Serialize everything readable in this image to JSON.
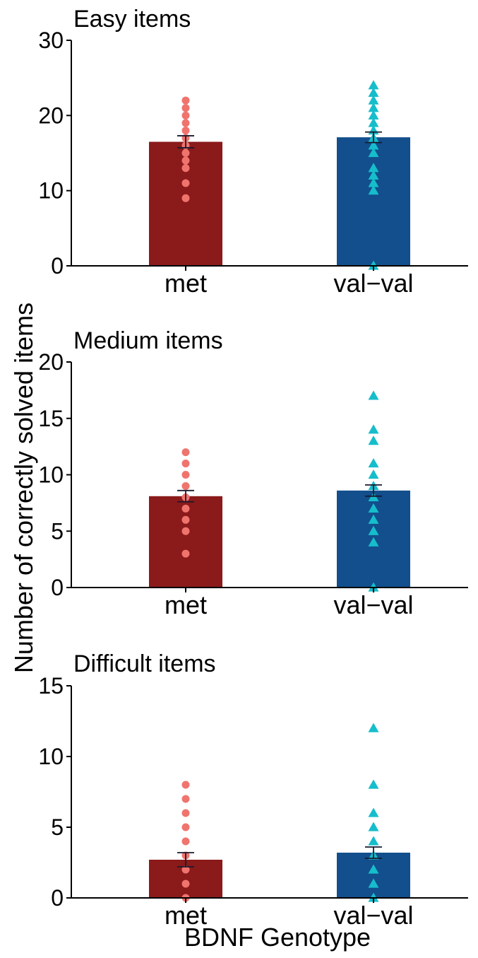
{
  "ylabel": "Number of correctly solved items",
  "xlabel": "BDNF Genotype",
  "colors": {
    "met_bar": "#8B1A1A",
    "valval_bar": "#124F8C",
    "met_point": "#F0746E",
    "valval_point": "#16BDCB",
    "axis": "#000000"
  },
  "chart_data": [
    {
      "type": "bar",
      "title": "Easy items",
      "categories": [
        "met",
        "val−val"
      ],
      "ylim": [
        0,
        30
      ],
      "yticks": [
        "0",
        "10",
        "20",
        "30"
      ],
      "means": [
        16.5,
        17.1
      ],
      "errors": [
        0.8,
        0.7
      ],
      "points": [
        [
          9,
          11,
          13,
          14,
          15,
          16,
          17,
          18,
          19,
          20,
          21,
          22
        ],
        [
          0,
          10,
          11,
          12,
          13,
          15,
          16,
          17,
          18,
          19,
          20,
          21,
          22,
          23,
          24
        ]
      ]
    },
    {
      "type": "bar",
      "title": "Medium items",
      "categories": [
        "met",
        "val−val"
      ],
      "ylim": [
        0,
        20
      ],
      "yticks": [
        "0",
        "5",
        "10",
        "15",
        "20"
      ],
      "means": [
        8.1,
        8.6
      ],
      "errors": [
        0.5,
        0.5
      ],
      "points": [
        [
          3,
          5,
          6,
          7,
          8,
          9,
          10,
          11,
          12
        ],
        [
          0,
          4,
          5,
          6,
          7,
          8,
          9,
          10,
          11,
          13,
          14,
          17
        ]
      ]
    },
    {
      "type": "bar",
      "title": "Difficult items",
      "categories": [
        "met",
        "val−val"
      ],
      "ylim": [
        0,
        15
      ],
      "yticks": [
        "0",
        "5",
        "10",
        "15"
      ],
      "means": [
        2.7,
        3.2
      ],
      "errors": [
        0.5,
        0.4
      ],
      "points": [
        [
          0,
          1,
          2,
          3,
          4,
          5,
          6,
          7,
          8
        ],
        [
          0,
          1,
          2,
          3,
          4,
          5,
          6,
          8,
          12
        ]
      ]
    }
  ]
}
